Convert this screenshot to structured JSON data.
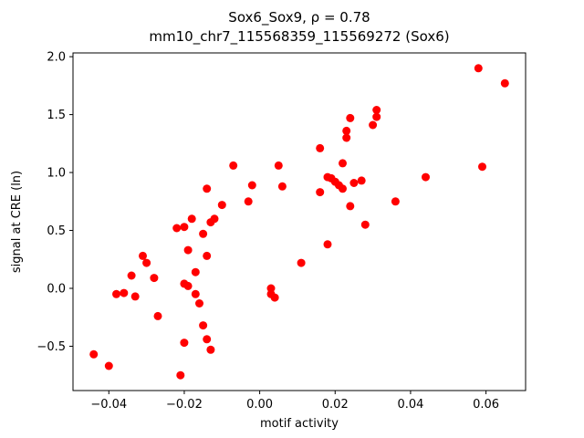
{
  "chart_data": {
    "type": "scatter",
    "title": "Sox6_Sox9, ρ = 0.78",
    "subtitle": "mm10_chr7_115568359_115569272 (Sox6)",
    "xlabel": "motif activity",
    "ylabel": "signal at CRE (ln)",
    "xlim": [
      -0.0495,
      0.0705
    ],
    "ylim": [
      -0.8825,
      2.0325
    ],
    "grid": false,
    "legend": "none",
    "marker_color": "#ff0000",
    "axis_color": "#000000",
    "xticks": [
      {
        "v": -0.04,
        "label": "−0.04"
      },
      {
        "v": -0.02,
        "label": "−0.02"
      },
      {
        "v": 0.0,
        "label": "0.00"
      },
      {
        "v": 0.02,
        "label": "0.02"
      },
      {
        "v": 0.04,
        "label": "0.04"
      },
      {
        "v": 0.06,
        "label": "0.06"
      }
    ],
    "yticks": [
      {
        "v": -0.5,
        "label": "−0.5"
      },
      {
        "v": 0.0,
        "label": "0.0"
      },
      {
        "v": 0.5,
        "label": "0.5"
      },
      {
        "v": 1.0,
        "label": "1.0"
      },
      {
        "v": 1.5,
        "label": "1.5"
      },
      {
        "v": 2.0,
        "label": "2.0"
      }
    ],
    "points": [
      [
        -0.044,
        -0.57
      ],
      [
        -0.04,
        -0.67
      ],
      [
        -0.038,
        -0.05
      ],
      [
        -0.036,
        -0.04
      ],
      [
        -0.034,
        0.11
      ],
      [
        -0.033,
        -0.07
      ],
      [
        -0.031,
        0.28
      ],
      [
        -0.03,
        0.22
      ],
      [
        -0.028,
        0.09
      ],
      [
        -0.027,
        -0.24
      ],
      [
        -0.022,
        0.52
      ],
      [
        -0.021,
        -0.75
      ],
      [
        -0.02,
        0.53
      ],
      [
        -0.02,
        0.04
      ],
      [
        -0.02,
        -0.47
      ],
      [
        -0.019,
        0.33
      ],
      [
        -0.019,
        0.02
      ],
      [
        -0.018,
        0.6
      ],
      [
        -0.017,
        -0.05
      ],
      [
        -0.017,
        0.14
      ],
      [
        -0.016,
        -0.13
      ],
      [
        -0.015,
        -0.32
      ],
      [
        -0.015,
        0.47
      ],
      [
        -0.014,
        0.86
      ],
      [
        -0.014,
        0.28
      ],
      [
        -0.014,
        -0.44
      ],
      [
        -0.013,
        -0.53
      ],
      [
        -0.013,
        0.57
      ],
      [
        -0.012,
        0.6
      ],
      [
        -0.01,
        0.72
      ],
      [
        -0.007,
        1.06
      ],
      [
        -0.003,
        0.75
      ],
      [
        -0.002,
        0.89
      ],
      [
        0.003,
        0.0
      ],
      [
        0.003,
        -0.05
      ],
      [
        0.004,
        -0.08
      ],
      [
        0.005,
        1.06
      ],
      [
        0.006,
        0.88
      ],
      [
        0.011,
        0.22
      ],
      [
        0.016,
        1.21
      ],
      [
        0.016,
        0.83
      ],
      [
        0.018,
        0.96
      ],
      [
        0.018,
        0.38
      ],
      [
        0.019,
        0.95
      ],
      [
        0.02,
        0.92
      ],
      [
        0.021,
        0.89
      ],
      [
        0.022,
        1.08
      ],
      [
        0.022,
        0.86
      ],
      [
        0.023,
        1.36
      ],
      [
        0.023,
        1.3
      ],
      [
        0.024,
        1.47
      ],
      [
        0.024,
        0.71
      ],
      [
        0.025,
        0.91
      ],
      [
        0.027,
        0.93
      ],
      [
        0.028,
        0.55
      ],
      [
        0.03,
        1.41
      ],
      [
        0.031,
        1.54
      ],
      [
        0.031,
        1.48
      ],
      [
        0.036,
        0.75
      ],
      [
        0.044,
        0.96
      ],
      [
        0.058,
        1.9
      ],
      [
        0.059,
        1.05
      ],
      [
        0.065,
        1.77
      ]
    ]
  }
}
